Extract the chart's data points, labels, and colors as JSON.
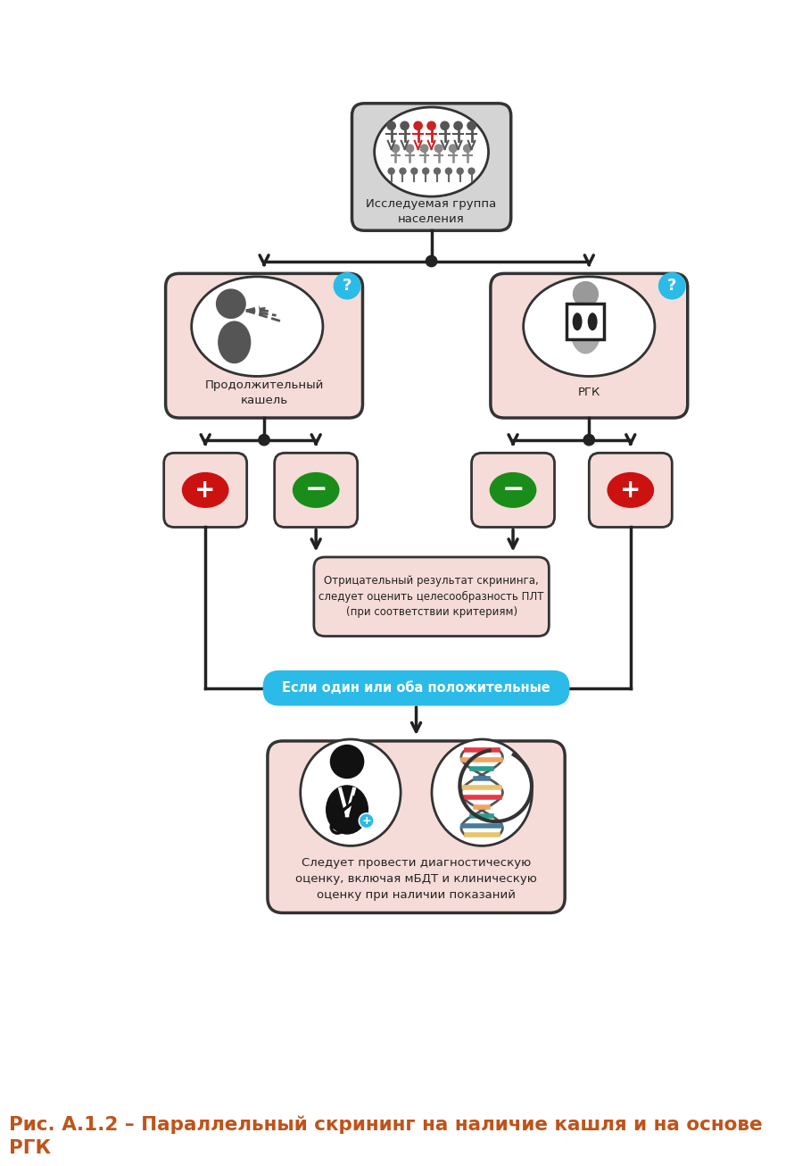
{
  "title": "Рис. А.1.2 – Параллельный скрининг на наличие кашля и на основе\nРГК",
  "title_color": "#c0531a",
  "title_fontsize": 15.5,
  "bg_color": "#ffffff",
  "box_salmon": "#f5dcd8",
  "box_gray": "#d4d4d4",
  "box_border": "#333333",
  "arrow_color": "#222222",
  "node1_label": "Исследуемая группа\nнаселения",
  "node2_label": "Продолжительный\nкашель",
  "node3_label": "РГК",
  "neg_box_label": "Отрицательный результат скрининга,\nследует оценить целесообразность ПЛТ\n(при соответствии критериям)",
  "if_label": "Если один или оба положительные",
  "final_label": "Следует провести диагностическую\nоценку, включая мБДТ и клиническую\nоценку при наличии показаний",
  "cyan_color": "#2abbe8",
  "red_color": "#cc1111",
  "green_color": "#1a8c1a"
}
